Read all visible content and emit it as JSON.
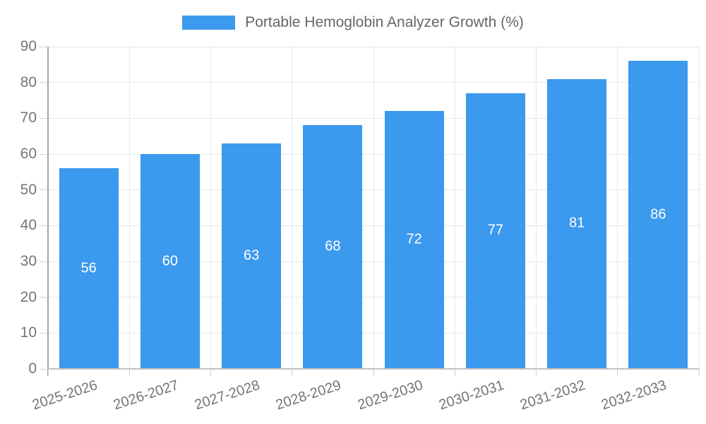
{
  "chart_data": {
    "type": "bar",
    "title": "Portable Hemoglobin Analyzer Growth (%)",
    "categories": [
      "2025-2026",
      "2026-2027",
      "2027-2028",
      "2028-2029",
      "2029-2030",
      "2030-2031",
      "2031-2032",
      "2032-2033"
    ],
    "values": [
      56,
      60,
      63,
      68,
      72,
      77,
      81,
      86
    ],
    "xlabel": "",
    "ylabel": "",
    "ylim": [
      0,
      90
    ],
    "yticks": [
      0,
      10,
      20,
      30,
      40,
      50,
      60,
      70,
      80,
      90
    ],
    "grid": true,
    "legend_position": "top",
    "bar_color": "#3b99ee",
    "value_label_color": "#ffffff",
    "grid_color": "#e6e6e6",
    "y_axis_line_color": "#a3a3a3",
    "x_axis_line_color": "#c2c2c2",
    "tick_color": "#d0d0d0",
    "tick_label_color": "#757575",
    "legend_text_color": "#666666"
  }
}
